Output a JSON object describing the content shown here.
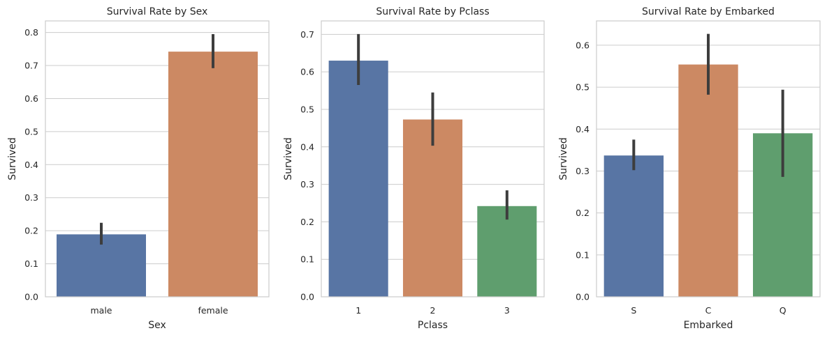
{
  "chart_data": [
    {
      "type": "bar",
      "title": "Survival Rate by Sex",
      "xlabel": "Sex",
      "ylabel": "Survived",
      "categories": [
        "male",
        "female"
      ],
      "values": [
        0.189,
        0.742
      ],
      "ci_low": [
        0.158,
        0.692
      ],
      "ci_high": [
        0.224,
        0.795
      ],
      "colors": [
        "#5875a4",
        "#cc8963"
      ],
      "ylim": [
        0,
        0.835
      ],
      "yticks": [
        0.0,
        0.1,
        0.2,
        0.3,
        0.4,
        0.5,
        0.6,
        0.7,
        0.8
      ],
      "ytick_labels": [
        "0.0",
        "0.1",
        "0.2",
        "0.3",
        "0.4",
        "0.5",
        "0.6",
        "0.7",
        "0.8"
      ],
      "grid": true
    },
    {
      "type": "bar",
      "title": "Survival Rate by Pclass",
      "xlabel": "Pclass",
      "ylabel": "Survived",
      "categories": [
        "1",
        "2",
        "3"
      ],
      "values": [
        0.63,
        0.473,
        0.242
      ],
      "ci_low": [
        0.565,
        0.403,
        0.206
      ],
      "ci_high": [
        0.701,
        0.545,
        0.284
      ],
      "colors": [
        "#5875a4",
        "#cc8963",
        "#5f9e6e"
      ],
      "ylim": [
        0,
        0.736
      ],
      "yticks": [
        0.0,
        0.1,
        0.2,
        0.3,
        0.4,
        0.5,
        0.6,
        0.7
      ],
      "ytick_labels": [
        "0.0",
        "0.1",
        "0.2",
        "0.3",
        "0.4",
        "0.5",
        "0.6",
        "0.7"
      ],
      "grid": true
    },
    {
      "type": "bar",
      "title": "Survival Rate by Embarked",
      "xlabel": "Embarked",
      "ylabel": "Survived",
      "categories": [
        "S",
        "C",
        "Q"
      ],
      "values": [
        0.337,
        0.554,
        0.39
      ],
      "ci_low": [
        0.302,
        0.482,
        0.286
      ],
      "ci_high": [
        0.375,
        0.627,
        0.494
      ],
      "colors": [
        "#5875a4",
        "#cc8963",
        "#5f9e6e"
      ],
      "ylim": [
        0,
        0.658
      ],
      "yticks": [
        0.0,
        0.1,
        0.2,
        0.3,
        0.4,
        0.5,
        0.6
      ],
      "ytick_labels": [
        "0.0",
        "0.1",
        "0.2",
        "0.3",
        "0.4",
        "0.5",
        "0.6"
      ],
      "grid": true
    }
  ]
}
